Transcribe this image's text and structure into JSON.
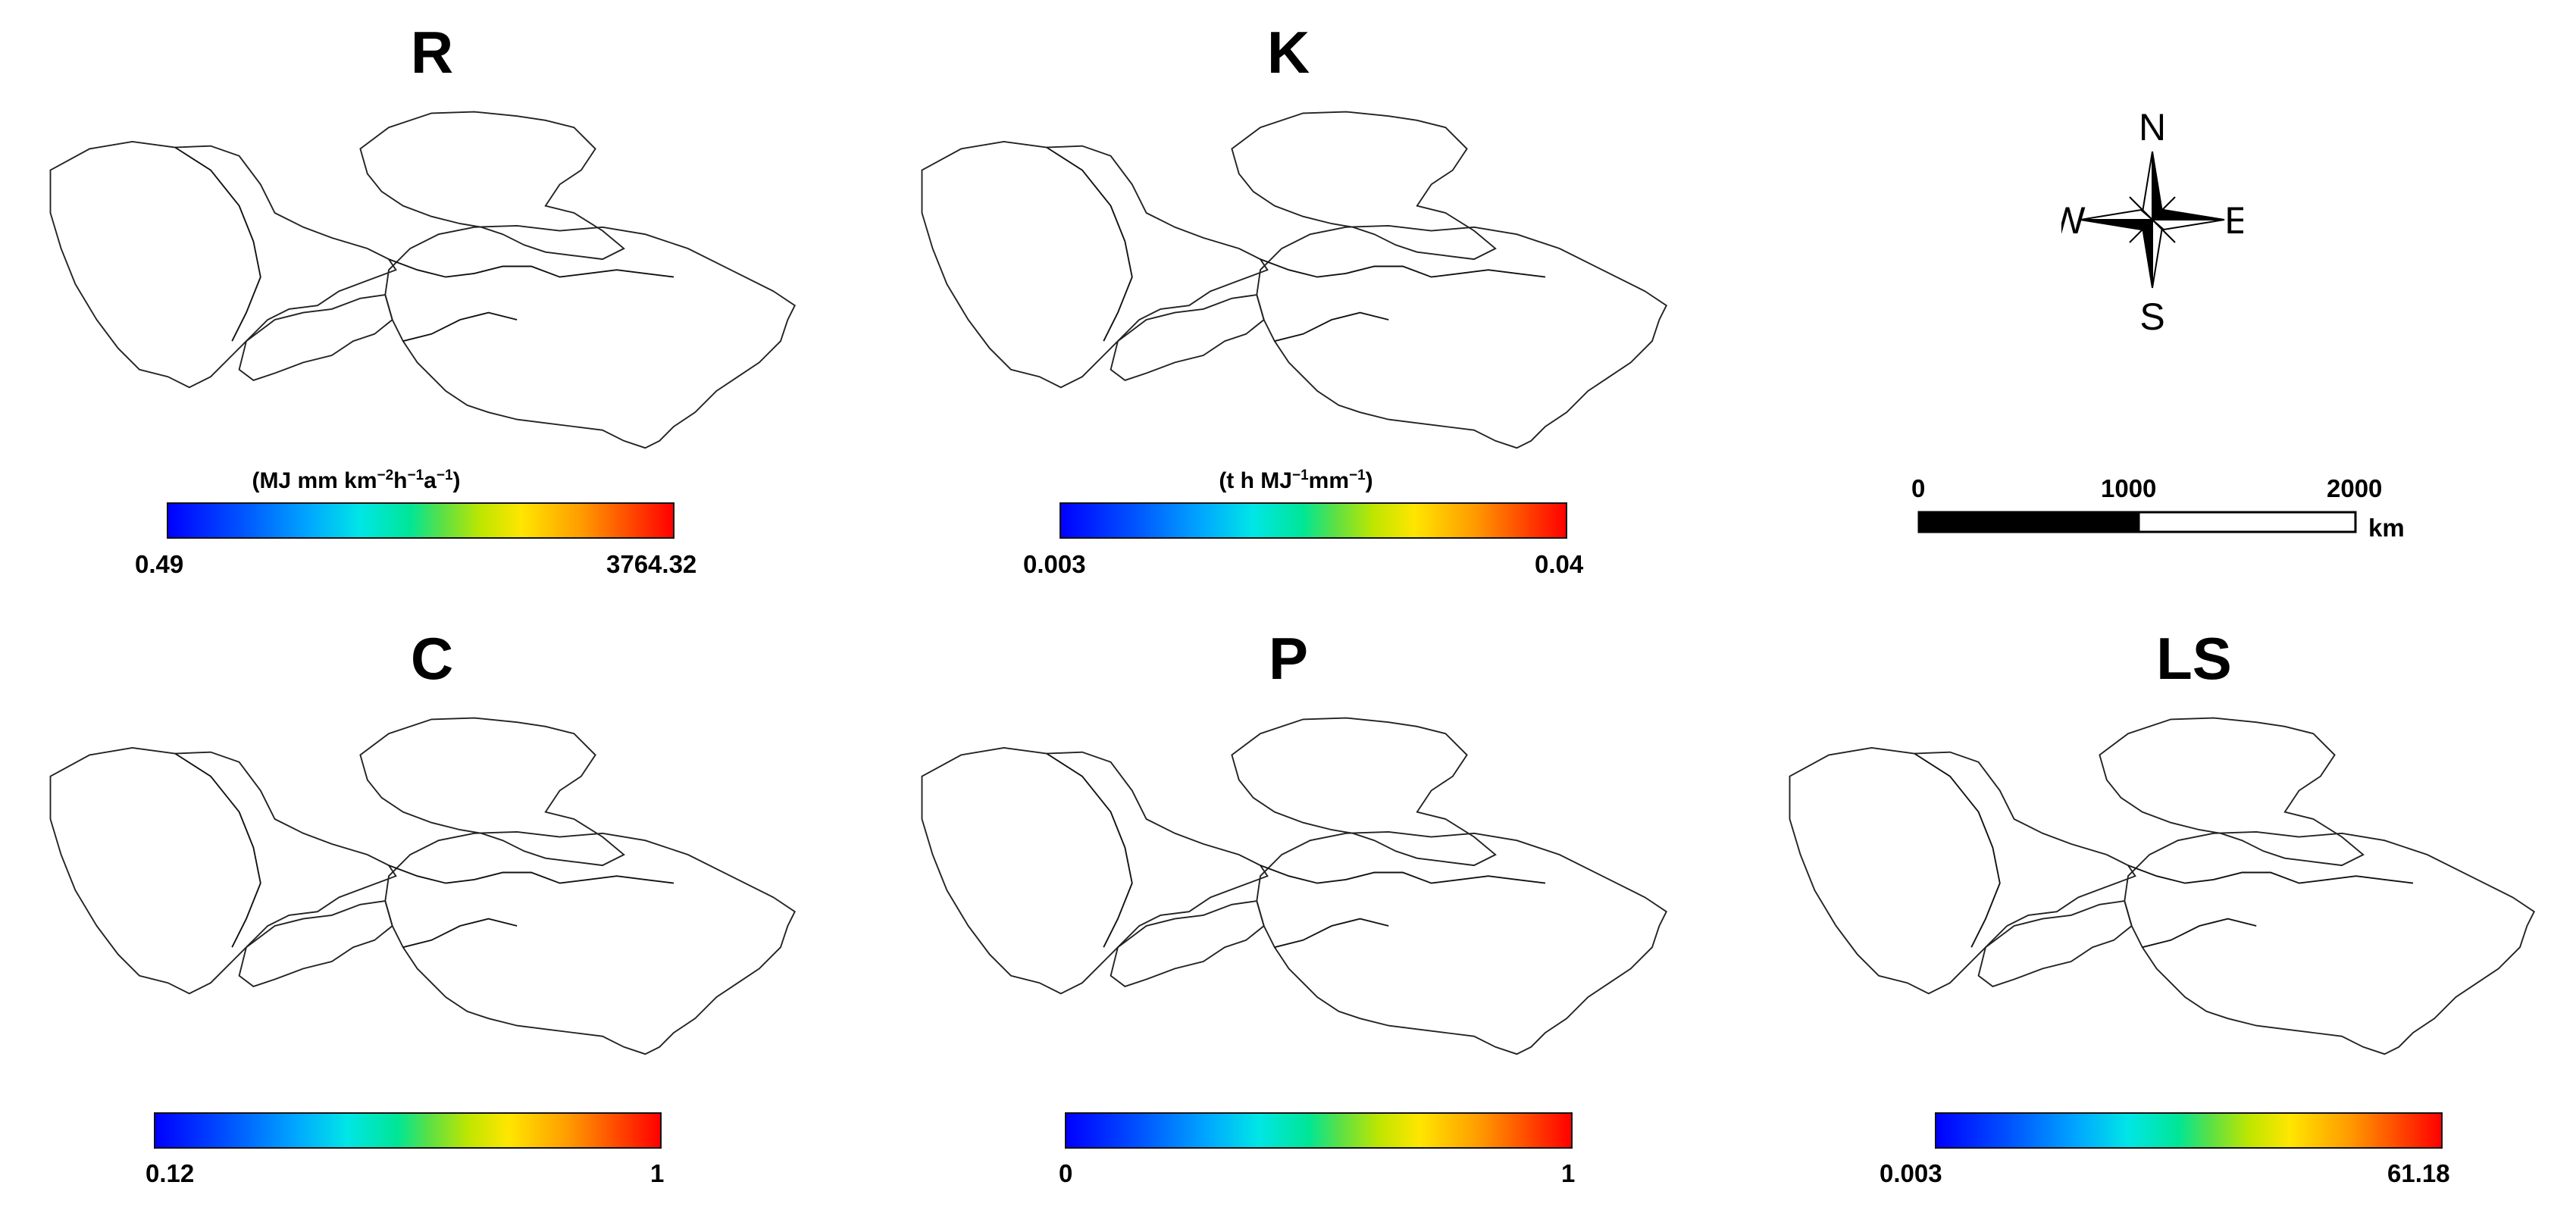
{
  "panels": {
    "r": {
      "title": "R",
      "unit_base": "(MJ mm km",
      "unit_tail": "h",
      "unit_tail2": "a",
      "unit_end": ")",
      "unit_exp1": "−2",
      "unit_exp2": "−1",
      "unit_exp3": "−1",
      "min": "0.49",
      "max": "3764.32"
    },
    "k": {
      "title": "K",
      "unit_base": "(t h MJ",
      "unit_tail": "mm",
      "unit_end": ")",
      "unit_exp1": "−1",
      "unit_exp2": "−1",
      "min": "0.003",
      "max": "0.04"
    },
    "c": {
      "title": "C",
      "min": "0.12",
      "max": "1"
    },
    "p": {
      "title": "P",
      "min": "0",
      "max": "1"
    },
    "ls": {
      "title": "LS",
      "min": "0.003",
      "max": "61.18"
    }
  },
  "compass": {
    "n": "N",
    "e": "E",
    "s": "S",
    "w": "W"
  },
  "scale_bar": {
    "t0": "0",
    "t1": "1000",
    "t2": "2000",
    "unit": "km"
  },
  "colors": {
    "low": "#0000ff",
    "mid": "#00e6e6",
    "high": "#ff0000",
    "border": "#222222"
  }
}
